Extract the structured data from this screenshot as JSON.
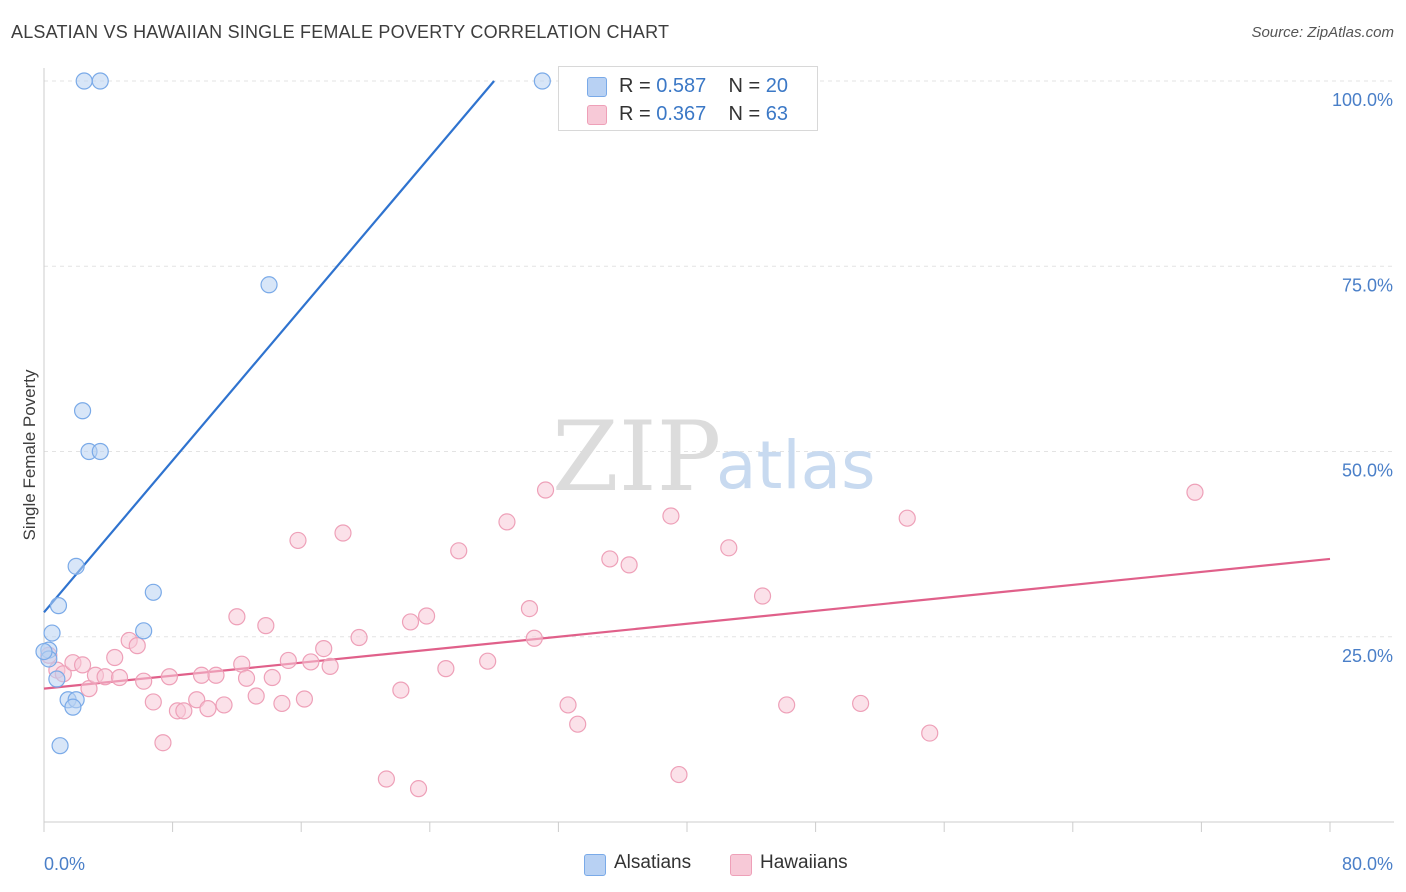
{
  "chart_data": {
    "type": "scatter",
    "title": "ALSATIAN VS HAWAIIAN SINGLE FEMALE POVERTY CORRELATION CHART",
    "source": "Source: ZipAtlas.com",
    "xlabel": "",
    "ylabel": "Single Female Poverty",
    "xlim": [
      0,
      80
    ],
    "ylim": [
      0,
      100
    ],
    "x_tick_labels": [
      "0.0%",
      "80.0%"
    ],
    "y_ticks": [
      25,
      50,
      75,
      100
    ],
    "y_tick_labels": [
      "25.0%",
      "50.0%",
      "75.0%",
      "100.0%"
    ],
    "watermark": {
      "zip": "ZIP",
      "atlas": "atlas"
    },
    "legend": [
      {
        "r_label": "R = ",
        "r_value": "0.587",
        "n_label": "N = ",
        "n_value": "20"
      },
      {
        "r_label": "R = ",
        "r_value": "0.367",
        "n_label": "N = ",
        "n_value": "63"
      }
    ],
    "series": [
      {
        "name": "Alsatians",
        "color": "#7aaae8",
        "fill": "#b8d1f3",
        "line_color": "#2f73cf",
        "trend": {
          "x0": 0,
          "y0": 28.3,
          "x1": 28,
          "y1": 100
        },
        "points": [
          [
            2.5,
            100
          ],
          [
            3.5,
            100
          ],
          [
            31,
            100
          ],
          [
            14,
            72.5
          ],
          [
            2.4,
            55.5
          ],
          [
            2.8,
            50
          ],
          [
            3.5,
            50
          ],
          [
            2.0,
            34.5
          ],
          [
            0.9,
            29.2
          ],
          [
            6.8,
            31.0
          ],
          [
            0.5,
            25.5
          ],
          [
            6.2,
            25.8
          ],
          [
            0.3,
            23.2
          ],
          [
            0.3,
            22.0
          ],
          [
            0.8,
            19.3
          ],
          [
            1.5,
            16.5
          ],
          [
            2.0,
            16.5
          ],
          [
            1.8,
            15.5
          ],
          [
            1.0,
            10.3
          ],
          [
            0.0,
            23.0
          ]
        ]
      },
      {
        "name": "Hawaiians",
        "color": "#eea0b8",
        "fill": "#f7c9d7",
        "line_color": "#e0608a",
        "trend": {
          "x0": 0,
          "y0": 18.0,
          "x1": 80,
          "y1": 35.5
        },
        "points": [
          [
            0.3,
            22.5
          ],
          [
            0.8,
            20.5
          ],
          [
            1.2,
            20.0
          ],
          [
            1.8,
            21.5
          ],
          [
            2.4,
            21.2
          ],
          [
            2.8,
            18.0
          ],
          [
            3.2,
            19.8
          ],
          [
            3.8,
            19.6
          ],
          [
            4.4,
            22.2
          ],
          [
            4.7,
            19.5
          ],
          [
            5.3,
            24.5
          ],
          [
            5.8,
            23.8
          ],
          [
            6.2,
            19.0
          ],
          [
            6.8,
            16.2
          ],
          [
            7.4,
            10.7
          ],
          [
            7.8,
            19.6
          ],
          [
            8.3,
            15.0
          ],
          [
            8.7,
            15.0
          ],
          [
            9.5,
            16.5
          ],
          [
            9.8,
            19.8
          ],
          [
            10.2,
            15.3
          ],
          [
            10.7,
            19.8
          ],
          [
            11.2,
            15.8
          ],
          [
            12.0,
            27.7
          ],
          [
            12.3,
            21.3
          ],
          [
            12.6,
            19.4
          ],
          [
            13.2,
            17.0
          ],
          [
            13.8,
            26.5
          ],
          [
            14.2,
            19.5
          ],
          [
            14.8,
            16.0
          ],
          [
            15.2,
            21.8
          ],
          [
            15.8,
            38.0
          ],
          [
            16.2,
            16.6
          ],
          [
            16.6,
            21.6
          ],
          [
            17.4,
            23.4
          ],
          [
            17.8,
            21.0
          ],
          [
            18.6,
            39.0
          ],
          [
            19.6,
            24.9
          ],
          [
            21.3,
            5.8
          ],
          [
            22.2,
            17.8
          ],
          [
            22.8,
            27.0
          ],
          [
            23.3,
            4.5
          ],
          [
            23.8,
            27.8
          ],
          [
            25.0,
            20.7
          ],
          [
            25.8,
            36.6
          ],
          [
            27.6,
            21.7
          ],
          [
            28.8,
            40.5
          ],
          [
            30.2,
            28.8
          ],
          [
            30.5,
            24.8
          ],
          [
            31.2,
            44.8
          ],
          [
            32.6,
            15.8
          ],
          [
            33.2,
            13.2
          ],
          [
            35.2,
            35.5
          ],
          [
            36.4,
            34.7
          ],
          [
            39.0,
            41.3
          ],
          [
            39.5,
            6.4
          ],
          [
            42.6,
            37.0
          ],
          [
            44.7,
            30.5
          ],
          [
            46.2,
            15.8
          ],
          [
            50.8,
            16.0
          ],
          [
            53.7,
            41.0
          ],
          [
            55.1,
            12.0
          ],
          [
            71.6,
            44.5
          ]
        ]
      }
    ]
  }
}
